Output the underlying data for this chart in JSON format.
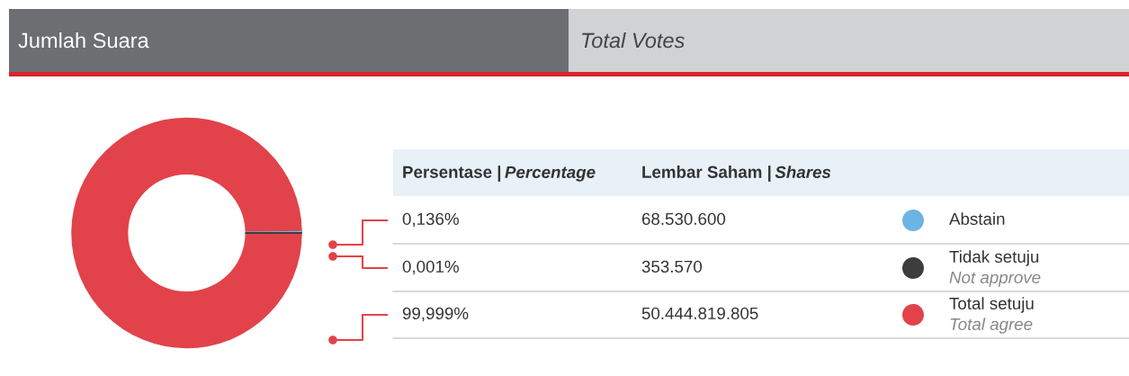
{
  "chart_data": {
    "type": "donut",
    "title": "Jumlah Suara",
    "subtitle": "Total Votes",
    "categories": [
      "Abstain",
      "Tidak setuju\nNot approve",
      "Total setuju\nTotal agree"
    ],
    "values": [
      68530600,
      353570,
      50444819805
    ],
    "value_labels": [
      "68.530.600",
      "353.570",
      "50.444.819.805"
    ],
    "colors": [
      "#6cb4e4",
      "#3d3d3d",
      "#e2434a"
    ],
    "annotations": [
      "Persentase | Percentage",
      "Lembar Saham | Shares",
      "0,136%",
      "0,001%",
      "99,999%"
    ],
    "legend": "right"
  }
}
